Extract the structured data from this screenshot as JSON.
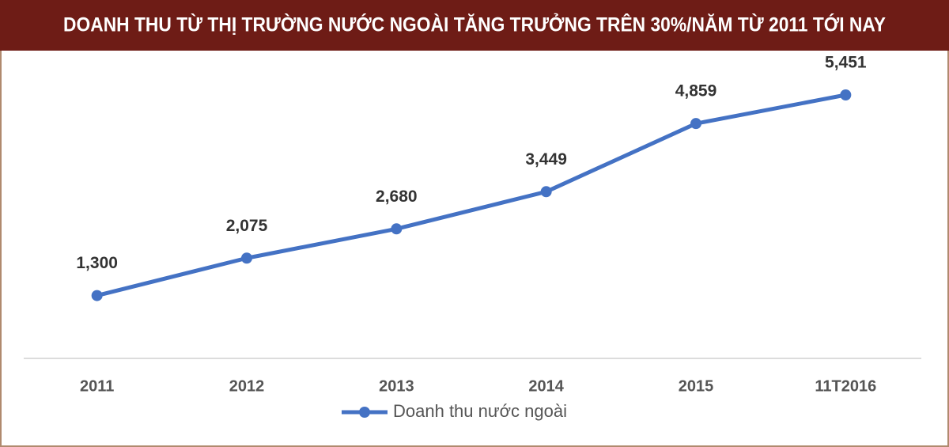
{
  "chart_data": {
    "type": "line",
    "title": "DOANH THU TỪ THỊ TRƯỜNG NƯỚC NGOÀI TĂNG TRƯỞNG TRÊN 30%/NĂM TỪ 2011 TỚI NAY",
    "categories": [
      "2011",
      "2012",
      "2013",
      "2014",
      "2015",
      "11T2016"
    ],
    "series": [
      {
        "name": "Doanh thu nước ngoài",
        "color": "#4472c4",
        "values": [
          1300,
          2075,
          2680,
          3449,
          4859,
          5451
        ],
        "value_labels": [
          "1,300",
          "2,075",
          "2,680",
          "3,449",
          "4,859",
          "5,451"
        ]
      }
    ],
    "legend": "bottom"
  }
}
